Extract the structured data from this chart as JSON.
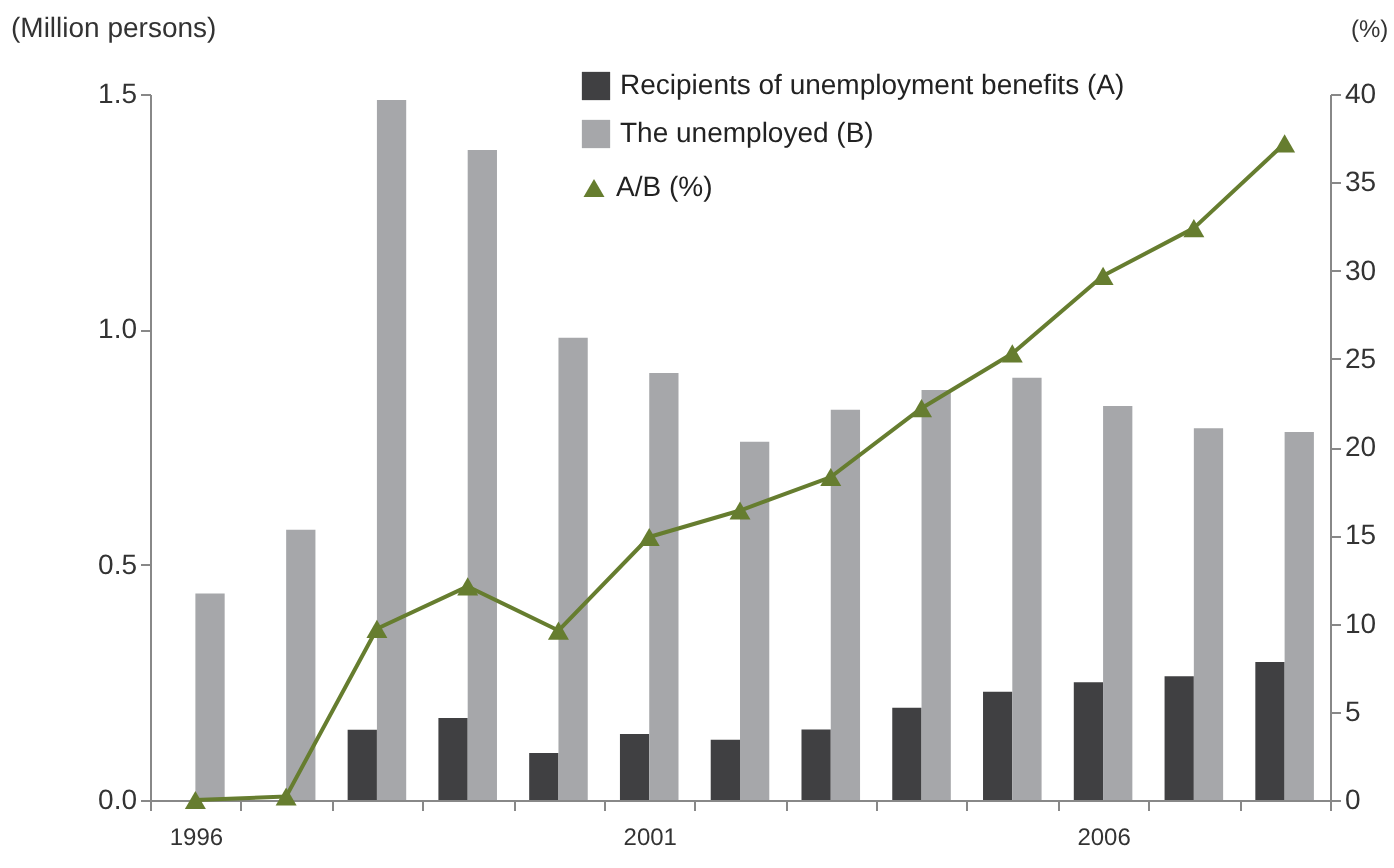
{
  "chart_data": {
    "type": "bar",
    "ylabel": "(Million persons)",
    "y2label": "(%)",
    "categories": [
      "1996",
      null,
      null,
      null,
      null,
      "2001",
      null,
      null,
      null,
      null,
      "2006",
      null,
      null
    ],
    "series": [
      {
        "name": "Recipients of unemployment benefits (A)",
        "color": "#404042",
        "values": [
          0,
          0,
          0.149,
          0.174,
          0.1,
          0.14,
          0.128,
          0.15,
          0.196,
          0.23,
          0.25,
          0.263,
          0.293
        ]
      },
      {
        "name": "The unemployed (B)",
        "color": "#a6a7aa",
        "values": [
          0.439,
          0.574,
          1.487,
          1.381,
          0.982,
          0.907,
          0.761,
          0.829,
          0.871,
          0.897,
          0.837,
          0.79,
          0.782
        ]
      },
      {
        "name": "A/B (%)",
        "type": "line",
        "axis": "y2",
        "color": "#667d2f",
        "marker": "triangle",
        "line_style": "solid",
        "values": [
          0,
          0.2,
          9.7,
          12.1,
          9.6,
          14.9,
          16.4,
          18.3,
          22.2,
          25.3,
          29.7,
          32.4,
          37.2
        ]
      }
    ],
    "ylim": [
      0,
      1.5
    ],
    "yticks": [
      {
        "value": 0,
        "label": "0.0"
      },
      {
        "value": 0.5,
        "label": "0.5"
      },
      {
        "value": 1,
        "label": "1.0"
      },
      {
        "value": 1.5,
        "label": "1.5"
      }
    ],
    "y2lim": [
      0,
      40
    ],
    "y2ticks": [
      0,
      5,
      10,
      15,
      20,
      25,
      30,
      35,
      40
    ],
    "grid": false,
    "legend": "top right"
  }
}
